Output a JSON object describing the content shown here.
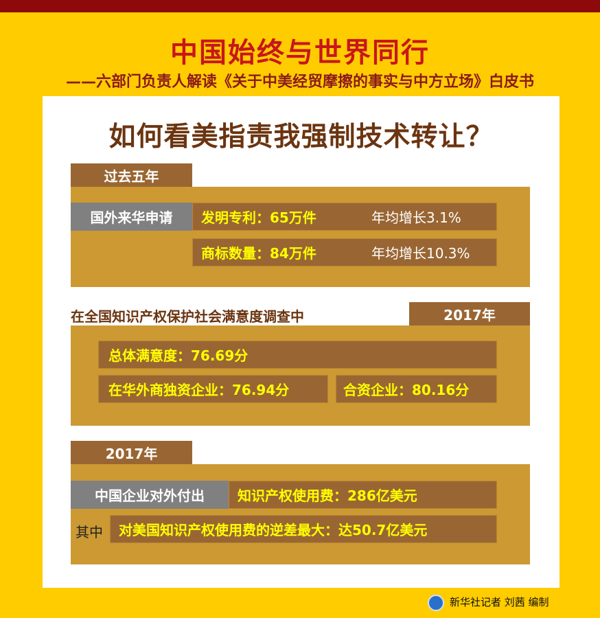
{
  "header": {
    "title": "中国始终与世界同行",
    "subtitle": "——六部门负责人解读《关于中美经贸摩擦的事实与中方立场》白皮书"
  },
  "headline": "如何看美指责我强制技术转让？",
  "section1": {
    "tab": "过去五年",
    "label": "国外来华申请",
    "rows": [
      {
        "item": "发明专利：65万件",
        "growth": "年均增长3.1%"
      },
      {
        "item": "商标数量：84万件",
        "growth": "年均增长10.3%"
      }
    ]
  },
  "section2": {
    "heading": "在全国知识产权保护社会满意度调查中",
    "tab": "2017年",
    "overall": "总体满意度：76.69分",
    "foreign": "在华外商独资企业：76.94分",
    "joint": "合资企业：80.16分"
  },
  "section3": {
    "tab": "2017年",
    "label": "中国企业对外付出",
    "fee": "知识产权使用费：286亿美元",
    "among_label": "其中",
    "deficit": "对美国知识产权使用费的逆差最大：达50.7亿美元"
  },
  "footer": {
    "credit": "新华社记者 刘茜 编制",
    "logo_icon": "xinhua-logo-icon"
  },
  "colors": {
    "background": "#ffcc00",
    "title": "#c8161d",
    "box": "#cc9933",
    "row": "#996633",
    "gray": "#808080",
    "highlight": "#ffff00"
  }
}
